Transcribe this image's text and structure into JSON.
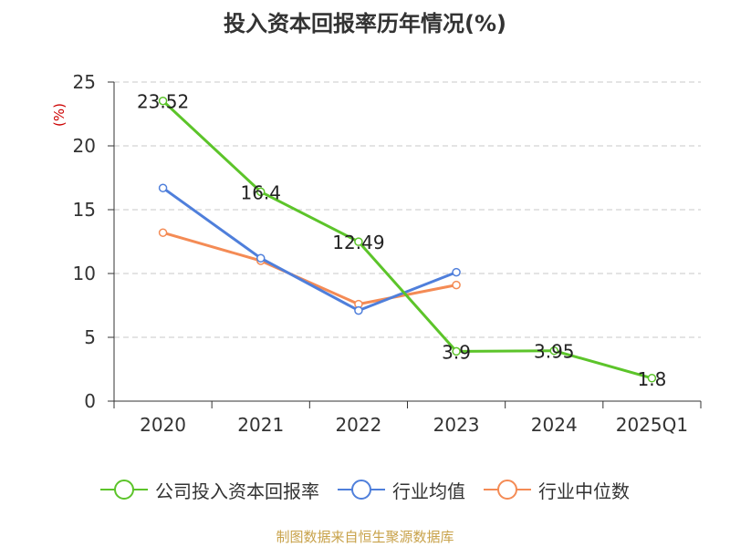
{
  "title": "投入资本回报率历年情况(%)",
  "source_note": "制图数据来自恒生聚源数据库",
  "chart_data": {
    "type": "line",
    "title": "投入资本回报率历年情况(%)",
    "ylabel": "(%)",
    "xlabel": "",
    "categories": [
      "2020",
      "2021",
      "2022",
      "2023",
      "2024",
      "2025Q1"
    ],
    "ylim": [
      0,
      25
    ],
    "yticks": [
      0,
      5,
      10,
      15,
      20,
      25
    ],
    "grid": true,
    "legend_position": "bottom",
    "series": [
      {
        "name": "公司投入资本回报率",
        "color": "#5cc42a",
        "values": [
          23.52,
          16.4,
          12.49,
          3.9,
          3.95,
          1.8
        ],
        "labels": [
          "23.52",
          "16.4",
          "12.49",
          "3.9",
          "3.95",
          "1.8"
        ]
      },
      {
        "name": "行业均值",
        "color": "#4f7fdb",
        "values": [
          16.7,
          11.2,
          7.1,
          10.1,
          null,
          null
        ]
      },
      {
        "name": "行业中位数",
        "color": "#f48b55",
        "values": [
          13.2,
          11.0,
          7.6,
          9.1,
          null,
          null
        ]
      }
    ]
  }
}
